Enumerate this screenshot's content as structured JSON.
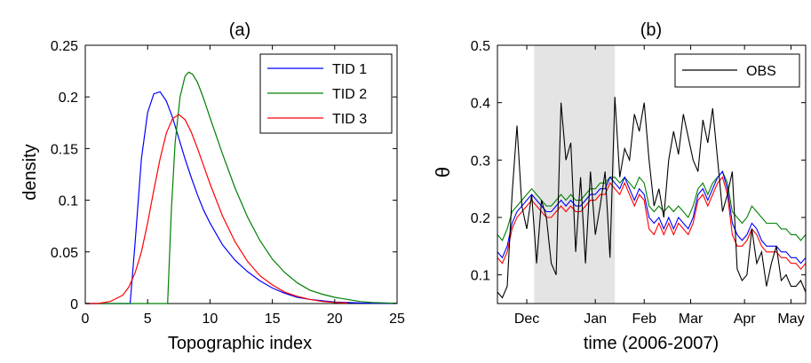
{
  "chart_data": [
    {
      "type": "line",
      "title": "(a)",
      "xlabel": "Topographic index",
      "ylabel": "density",
      "xlim": [
        0,
        25
      ],
      "ylim": [
        0,
        0.25
      ],
      "xticks": [
        "0",
        "5",
        "10",
        "15",
        "20",
        "25"
      ],
      "yticks": [
        "0",
        "0.05",
        "0.1",
        "0.15",
        "0.2",
        "0.25"
      ],
      "grid": false,
      "legend_position": "top-right",
      "series": [
        {
          "name": "TID 1",
          "color": "#0000ff",
          "x": [
            3.6,
            4.0,
            4.5,
            5.0,
            5.5,
            6.0,
            6.5,
            7.0,
            7.5,
            8.0,
            8.5,
            9.0,
            9.5,
            10,
            11,
            12,
            13,
            14,
            15,
            16,
            17,
            18,
            20,
            22,
            25
          ],
          "y": [
            0,
            0.06,
            0.14,
            0.185,
            0.203,
            0.205,
            0.196,
            0.18,
            0.16,
            0.14,
            0.122,
            0.105,
            0.09,
            0.078,
            0.057,
            0.042,
            0.031,
            0.022,
            0.015,
            0.01,
            0.006,
            0.004,
            0.0015,
            0.0005,
            0.0001
          ]
        },
        {
          "name": "TID 2",
          "color": "#008000",
          "x": [
            6.6,
            6.9,
            7.2,
            7.6,
            8.0,
            8.3,
            8.6,
            9.0,
            9.5,
            10,
            11,
            12,
            13,
            14,
            15,
            16,
            17,
            18,
            19,
            20,
            21,
            22,
            23,
            25
          ],
          "y": [
            0,
            0.09,
            0.155,
            0.2,
            0.22,
            0.224,
            0.222,
            0.214,
            0.198,
            0.18,
            0.145,
            0.112,
            0.084,
            0.061,
            0.043,
            0.03,
            0.02,
            0.013,
            0.009,
            0.006,
            0.004,
            0.002,
            0.001,
            0.0003
          ]
        },
        {
          "name": "TID 3",
          "color": "#ff0000",
          "x": [
            1.0,
            2,
            3,
            3.5,
            4,
            4.5,
            5,
            5.5,
            6,
            6.5,
            7,
            7.5,
            8,
            8.5,
            9,
            9.5,
            10,
            11,
            12,
            13,
            14,
            15,
            16,
            17,
            18,
            19,
            20,
            21
          ],
          "y": [
            0,
            0.002,
            0.008,
            0.016,
            0.03,
            0.05,
            0.078,
            0.11,
            0.14,
            0.165,
            0.179,
            0.183,
            0.178,
            0.166,
            0.15,
            0.133,
            0.116,
            0.085,
            0.06,
            0.041,
            0.027,
            0.018,
            0.011,
            0.007,
            0.004,
            0.002,
            0.001,
            0.0005
          ]
        }
      ]
    },
    {
      "type": "line",
      "title": "(b)",
      "xlabel": "time (2006-2007)",
      "ylabel": "θ",
      "xlim": [
        0,
        100
      ],
      "ylim": [
        0.05,
        0.5
      ],
      "month_ticks": [
        {
          "x": 12,
          "label": "Dec"
        },
        {
          "x": 40,
          "label": "Jan"
        },
        {
          "x": 60,
          "label": "Feb"
        },
        {
          "x": 79,
          "label": "Mar"
        },
        {
          "x": 101,
          "label": "Apr"
        },
        {
          "x": 120,
          "label": "May"
        }
      ],
      "x_days": [
        0,
        2,
        4,
        6,
        8,
        10,
        12,
        14,
        16,
        18,
        20,
        22,
        24,
        26,
        28,
        30,
        32,
        34,
        36,
        38,
        40,
        42,
        44,
        46,
        48,
        50,
        52,
        54,
        56,
        58,
        60,
        62,
        64,
        66,
        68,
        70,
        72,
        74,
        76,
        78,
        80,
        82,
        84,
        86,
        88,
        90,
        92,
        94,
        96,
        98,
        100,
        102,
        104,
        106,
        108,
        110,
        112,
        114,
        116,
        118,
        120,
        122,
        124,
        126
      ],
      "yticks": [
        "0.1",
        "0.2",
        "0.3",
        "0.4",
        "0.5"
      ],
      "shaded_region": [
        15,
        48
      ],
      "grid": false,
      "legend_position": "top-right",
      "series": [
        {
          "name": "OBS",
          "color": "#000000",
          "y": [
            0.07,
            0.06,
            0.08,
            0.24,
            0.36,
            0.22,
            0.18,
            0.24,
            0.12,
            0.23,
            0.2,
            0.12,
            0.1,
            0.4,
            0.3,
            0.33,
            0.14,
            0.27,
            0.12,
            0.28,
            0.17,
            0.22,
            0.28,
            0.13,
            0.41,
            0.27,
            0.32,
            0.3,
            0.38,
            0.35,
            0.4,
            0.3,
            0.22,
            0.25,
            0.2,
            0.3,
            0.35,
            0.31,
            0.38,
            0.34,
            0.3,
            0.28,
            0.37,
            0.33,
            0.39,
            0.3,
            0.21,
            0.24,
            0.28,
            0.11,
            0.09,
            0.1,
            0.18,
            0.12,
            0.14,
            0.08,
            0.12,
            0.15,
            0.09,
            0.1,
            0.08,
            0.08,
            0.09,
            0.07
          ]
        },
        {
          "name": "",
          "color": "#008000",
          "y": [
            0.17,
            0.16,
            0.18,
            0.21,
            0.22,
            0.23,
            0.24,
            0.25,
            0.24,
            0.23,
            0.22,
            0.22,
            0.23,
            0.24,
            0.23,
            0.24,
            0.23,
            0.23,
            0.24,
            0.25,
            0.25,
            0.26,
            0.26,
            0.27,
            0.27,
            0.26,
            0.27,
            0.26,
            0.25,
            0.27,
            0.26,
            0.22,
            0.21,
            0.22,
            0.21,
            0.22,
            0.21,
            0.22,
            0.21,
            0.2,
            0.22,
            0.25,
            0.26,
            0.24,
            0.26,
            0.27,
            0.28,
            0.26,
            0.21,
            0.2,
            0.19,
            0.2,
            0.22,
            0.21,
            0.2,
            0.19,
            0.19,
            0.19,
            0.18,
            0.18,
            0.17,
            0.17,
            0.16,
            0.17
          ]
        },
        {
          "name": "",
          "color": "#0000ff",
          "y": [
            0.14,
            0.13,
            0.15,
            0.19,
            0.21,
            0.22,
            0.23,
            0.24,
            0.23,
            0.22,
            0.21,
            0.21,
            0.22,
            0.23,
            0.22,
            0.23,
            0.22,
            0.22,
            0.23,
            0.24,
            0.24,
            0.25,
            0.25,
            0.27,
            0.26,
            0.25,
            0.27,
            0.25,
            0.23,
            0.25,
            0.24,
            0.2,
            0.19,
            0.2,
            0.18,
            0.2,
            0.18,
            0.2,
            0.19,
            0.18,
            0.2,
            0.24,
            0.25,
            0.23,
            0.25,
            0.27,
            0.28,
            0.25,
            0.19,
            0.17,
            0.16,
            0.17,
            0.19,
            0.18,
            0.16,
            0.15,
            0.15,
            0.15,
            0.14,
            0.14,
            0.13,
            0.13,
            0.12,
            0.13
          ]
        },
        {
          "name": "",
          "color": "#ff0000",
          "y": [
            0.13,
            0.12,
            0.14,
            0.18,
            0.2,
            0.21,
            0.22,
            0.23,
            0.22,
            0.21,
            0.2,
            0.2,
            0.21,
            0.22,
            0.21,
            0.22,
            0.21,
            0.21,
            0.22,
            0.23,
            0.23,
            0.24,
            0.24,
            0.26,
            0.25,
            0.24,
            0.26,
            0.24,
            0.22,
            0.24,
            0.23,
            0.18,
            0.17,
            0.19,
            0.17,
            0.19,
            0.17,
            0.19,
            0.18,
            0.17,
            0.19,
            0.23,
            0.24,
            0.22,
            0.24,
            0.26,
            0.27,
            0.24,
            0.17,
            0.15,
            0.15,
            0.16,
            0.18,
            0.17,
            0.15,
            0.14,
            0.14,
            0.14,
            0.13,
            0.13,
            0.12,
            0.12,
            0.11,
            0.12
          ]
        }
      ]
    }
  ]
}
